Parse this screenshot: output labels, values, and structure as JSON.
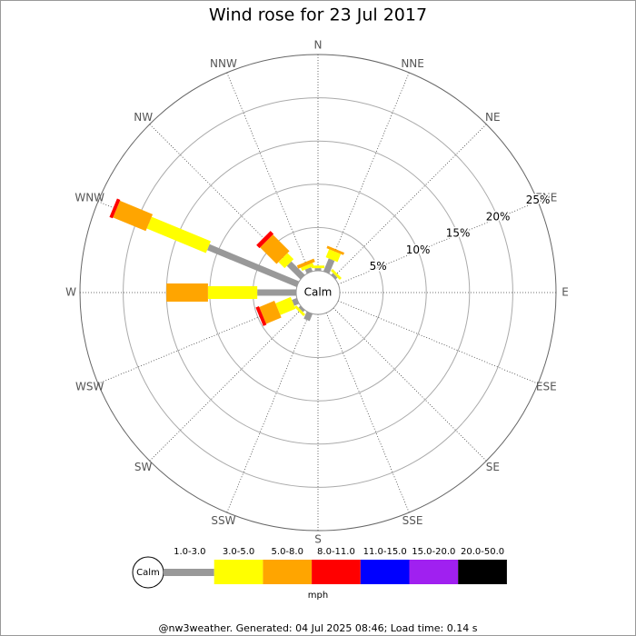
{
  "chart_data": {
    "type": "windrose",
    "title": "Wind rose for 23 Jul 2017",
    "categories": [
      "N",
      "NNE",
      "NE",
      "ENE",
      "E",
      "ESE",
      "SE",
      "SSE",
      "S",
      "SSW",
      "SW",
      "WSW",
      "W",
      "WNW",
      "NW",
      "NNW"
    ],
    "calm_label": "Calm",
    "rlim": [
      0,
      25
    ],
    "rticks": [
      {
        "value": 5,
        "label": "5%"
      },
      {
        "value": 10,
        "label": "10%"
      },
      {
        "value": 15,
        "label": "15%"
      },
      {
        "value": 20,
        "label": "20%"
      },
      {
        "value": 25,
        "label": "25%"
      }
    ],
    "series": [
      {
        "name": "1.0-3.0",
        "color": "#999999",
        "values": [
          0.3,
          1.6,
          0.3,
          0,
          0,
          0,
          0,
          0,
          0,
          0.9,
          0.3,
          0.6,
          4.5,
          11.2,
          2.2,
          0.5
        ]
      },
      {
        "name": "3.0-5.0",
        "color": "#ffff00",
        "values": [
          0.3,
          1.0,
          0.3,
          0,
          0,
          0,
          0,
          0,
          0,
          0,
          0.3,
          1.9,
          5.7,
          7.4,
          1.0,
          0.4
        ]
      },
      {
        "name": "5.0-8.0",
        "color": "#ffa500",
        "values": [
          0,
          0.3,
          0,
          0,
          0,
          0,
          0,
          0,
          0,
          0,
          0,
          1.9,
          4.8,
          4.1,
          2.7,
          0.4
        ]
      },
      {
        "name": "8.0-11.0",
        "color": "#ff0000",
        "values": [
          0,
          0,
          0,
          0,
          0,
          0,
          0,
          0,
          0,
          0,
          0,
          0.4,
          0,
          0.4,
          0.5,
          0
        ]
      },
      {
        "name": "11.0-15.0",
        "color": "#0000ff",
        "values": [
          0,
          0,
          0,
          0,
          0,
          0,
          0,
          0,
          0,
          0,
          0,
          0,
          0,
          0,
          0,
          0
        ]
      },
      {
        "name": "15.0-20.0",
        "color": "#a020f0",
        "values": [
          0,
          0,
          0,
          0,
          0,
          0,
          0,
          0,
          0,
          0,
          0,
          0,
          0,
          0,
          0,
          0
        ]
      },
      {
        "name": "20.0-50.0",
        "color": "#000000",
        "values": [
          0,
          0,
          0,
          0,
          0,
          0,
          0,
          0,
          0,
          0,
          0,
          0,
          0,
          0,
          0,
          0
        ]
      }
    ],
    "legend_unit": "mph",
    "footer": "@nw3weather. Generated: 04 Jul 2025 08:46; Load time: 0.14 s"
  }
}
